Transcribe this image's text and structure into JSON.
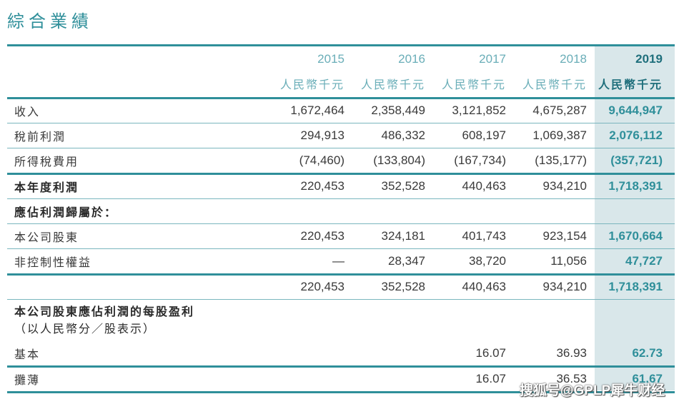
{
  "title": "綜合業績",
  "header": {
    "years": [
      "2015",
      "2016",
      "2017",
      "2018",
      "2019"
    ],
    "unit": "人民幣千元"
  },
  "rows": [
    {
      "label": "收入",
      "values": [
        "1,672,464",
        "2,358,449",
        "3,121,852",
        "4,675,287",
        "9,644,947"
      ]
    },
    {
      "label": "稅前利潤",
      "values": [
        "294,913",
        "486,332",
        "608,197",
        "1,069,387",
        "2,076,112"
      ]
    },
    {
      "label": "所得稅費用",
      "values": [
        "(74,460)",
        "(133,804)",
        "(167,734)",
        "(135,177)",
        "(357,721)"
      ]
    },
    {
      "label": "本年度利潤",
      "values": [
        "220,453",
        "352,528",
        "440,463",
        "934,210",
        "1,718,391"
      ]
    },
    {
      "label": "應佔利潤歸屬於："
    },
    {
      "label": "本公司股東",
      "values": [
        "220,453",
        "324,181",
        "401,743",
        "923,154",
        "1,670,664"
      ]
    },
    {
      "label": "非控制性權益",
      "values": [
        "—",
        "28,347",
        "38,720",
        "11,056",
        "47,727"
      ]
    },
    {
      "label": "",
      "values": [
        "220,453",
        "352,528",
        "440,463",
        "934,210",
        "1,718,391"
      ]
    },
    {
      "label_line1": "本公司股東應佔利潤的每股盈利",
      "label_line2": "（以人民幣分／股表示）"
    },
    {
      "label": "基本",
      "values": [
        "",
        "",
        "16.07",
        "36.93",
        "62.73"
      ]
    },
    {
      "label": "攤薄",
      "values": [
        "",
        "",
        "16.07",
        "36.53",
        "61.67"
      ]
    }
  ],
  "watermark": "搜狐号@GPLP犀牛财经",
  "colors": {
    "accent": "#2f8f9a",
    "highlight": "#d9e7ea"
  }
}
